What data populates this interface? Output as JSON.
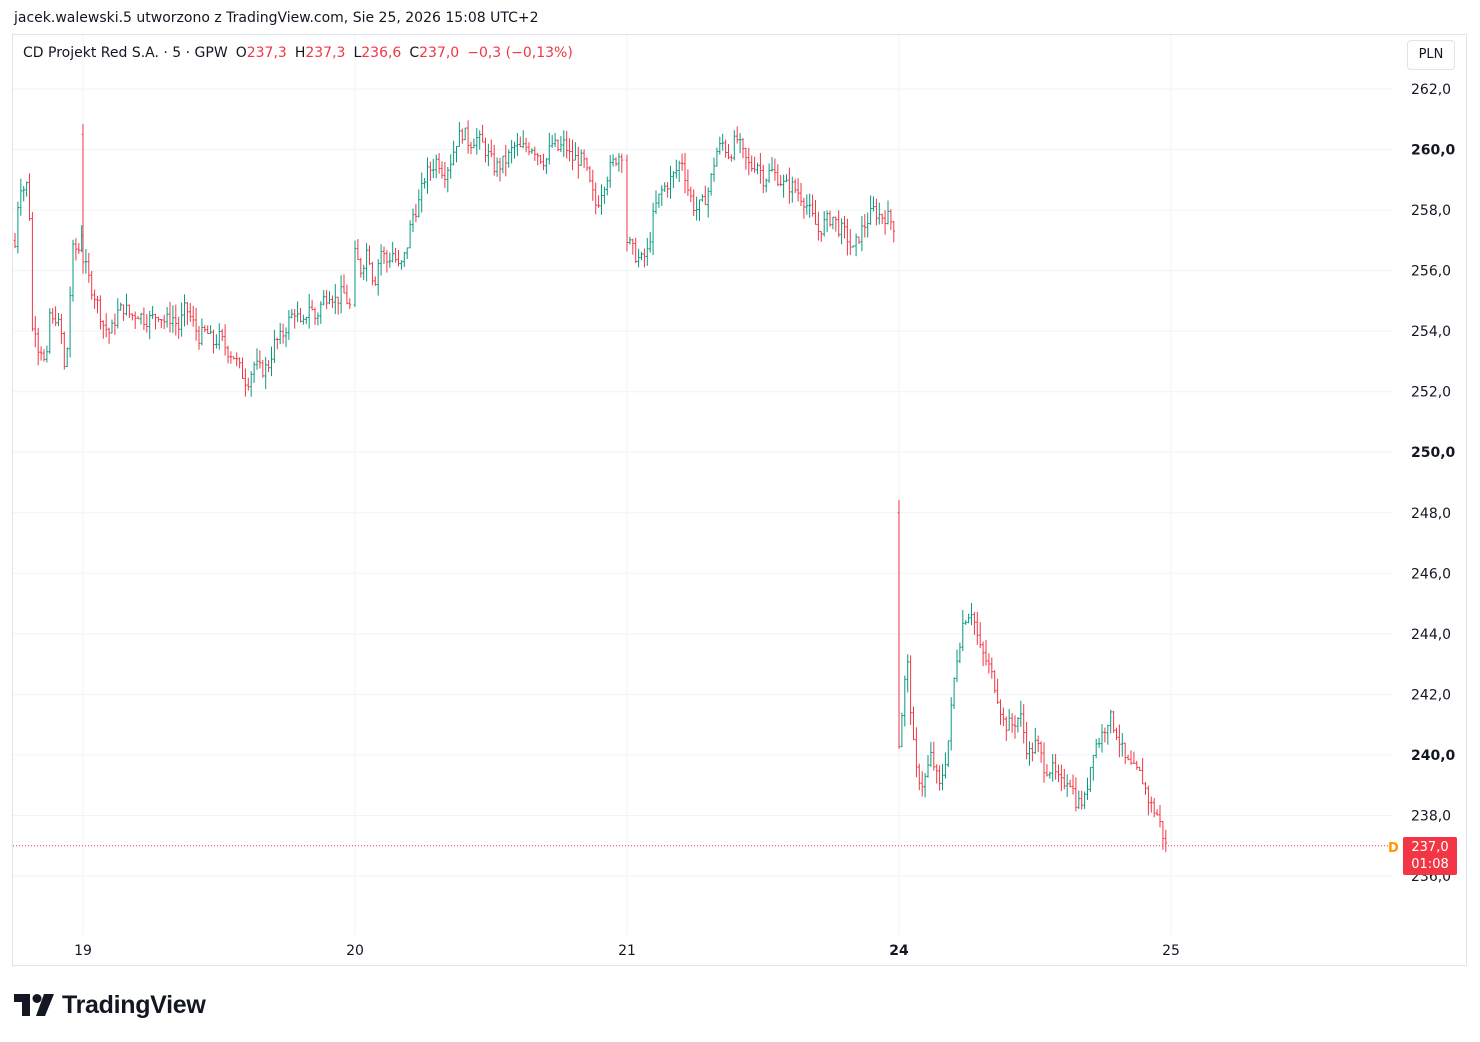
{
  "header": {
    "attribution": "jacek.walewski.5 utworzono z TradingView.com, Sie 25, 2026 15:08 UTC+2"
  },
  "legend": {
    "symbol": "CD Projekt Red S.A. · 5 · GPW",
    "open_label": "O",
    "open": "237,3",
    "high_label": "H",
    "high": "237,3",
    "low_label": "L",
    "low": "236,6",
    "close_label": "C",
    "close": "237,0",
    "change": "−0,3 (−0,13%)"
  },
  "currency": "PLN",
  "last_price": {
    "value": "237,0",
    "countdown": "01:08",
    "marker": "D"
  },
  "brand": {
    "name": "TradingView"
  },
  "colors": {
    "up": "#089981",
    "down": "#f23645",
    "grid": "#f0f3fa",
    "text": "#131722"
  },
  "chart_data": {
    "type": "bar",
    "title": "CD Projekt Red S.A.",
    "y_range": [
      235,
      263
    ],
    "y_ticks": [
      {
        "v": 262,
        "label": "262,0",
        "bold": false
      },
      {
        "v": 260,
        "label": "260,0",
        "bold": true
      },
      {
        "v": 258,
        "label": "258,0",
        "bold": false
      },
      {
        "v": 256,
        "label": "256,0",
        "bold": false
      },
      {
        "v": 254,
        "label": "254,0",
        "bold": false
      },
      {
        "v": 252,
        "label": "252,0",
        "bold": false
      },
      {
        "v": 250,
        "label": "250,0",
        "bold": true
      },
      {
        "v": 248,
        "label": "248,0",
        "bold": false
      },
      {
        "v": 246,
        "label": "246,0",
        "bold": false
      },
      {
        "v": 244,
        "label": "244,0",
        "bold": false
      },
      {
        "v": 242,
        "label": "242,0",
        "bold": false
      },
      {
        "v": 240,
        "label": "240,0",
        "bold": true
      },
      {
        "v": 238,
        "label": "238,0",
        "bold": false
      },
      {
        "v": 236,
        "label": "236,0",
        "bold": false
      }
    ],
    "x_ticks": [
      {
        "label": "19",
        "bold": false
      },
      {
        "label": "20",
        "bold": false
      },
      {
        "label": "21",
        "bold": false
      },
      {
        "label": "24",
        "bold": true
      },
      {
        "label": "25",
        "bold": false
      }
    ],
    "days": [
      {
        "label": "19",
        "path": [
          256.8,
          257.6,
          258.6,
          259.0,
          258.3,
          258.8,
          258.7,
          259.0,
          258.0,
          254.5,
          253.8,
          254.6,
          252.8,
          253.6,
          253.0,
          253.9,
          253.0,
          252.8,
          253.2,
          254.4,
          255.0,
          254.2,
          254.8,
          254.2,
          254.3,
          253.5,
          254.0,
          253.0,
          252.3,
          253.5,
          254.2,
          256.0,
          256.7,
          256.4,
          256.8,
          256.5,
          257.0,
          257.3
        ]
      },
      {
        "label": "20",
        "path": [
          256.4,
          255.6,
          255.0,
          254.2,
          253.9,
          254.6,
          254.8,
          254.5,
          254.6,
          254.4,
          254.4,
          254.6,
          254.3,
          254.5,
          254.1,
          254.8,
          254.3,
          253.8,
          254.0,
          253.6,
          253.8,
          253.4,
          253.2,
          252.7,
          252.3,
          252.9,
          252.7,
          252.8,
          253.6,
          253.8,
          254.3,
          254.7,
          254.0,
          254.9,
          254.4,
          255.0,
          255.3,
          255.0,
          255.3,
          254.8
        ]
      },
      {
        "label": "21",
        "path": [
          256.5,
          256.0,
          256.8,
          255.5,
          256.7,
          256.3,
          256.6,
          256.0,
          256.6,
          257.8,
          258.2,
          259.1,
          259.4,
          259.7,
          259.2,
          259.6,
          260.3,
          260.6,
          260.2,
          260.4,
          260.2,
          259.8,
          259.4,
          259.5,
          259.7,
          260.1,
          260.0,
          260.1,
          260.1,
          259.8,
          259.6,
          260.2,
          260.0,
          260.2,
          259.7,
          259.7,
          259.6,
          258.8,
          258.1,
          258.8,
          259.3,
          259.7,
          259.9
        ]
      },
      {
        "label": "24",
        "path": [
          257.0,
          256.6,
          256.3,
          256.6,
          258.0,
          258.6,
          258.9,
          259.2,
          259.7,
          258.6,
          258.0,
          258.2,
          258.7,
          259.9,
          260.2,
          259.8,
          260.4,
          259.8,
          259.4,
          259.6,
          259.0,
          259.3,
          259.1,
          258.8,
          258.8,
          258.6,
          258.3,
          257.8,
          257.3,
          257.6,
          257.8,
          257.4,
          257.2,
          256.6,
          257.2,
          257.6,
          258.0,
          257.8,
          257.8,
          257.5
        ]
      },
      {
        "label": "25",
        "path": [
          240.4,
          243.2,
          239.5,
          239.0,
          240.0,
          238.9,
          240.2,
          243.0,
          244.5,
          244.8,
          243.5,
          243.0,
          242.2,
          241.0,
          241.0,
          241.3,
          240.0,
          240.4,
          239.6,
          239.5,
          239.0,
          239.3,
          238.4,
          238.5,
          240.2,
          240.6,
          241.3,
          240.7,
          239.8,
          239.5,
          239.3,
          238.4,
          238.0,
          237.0
        ]
      }
    ]
  }
}
